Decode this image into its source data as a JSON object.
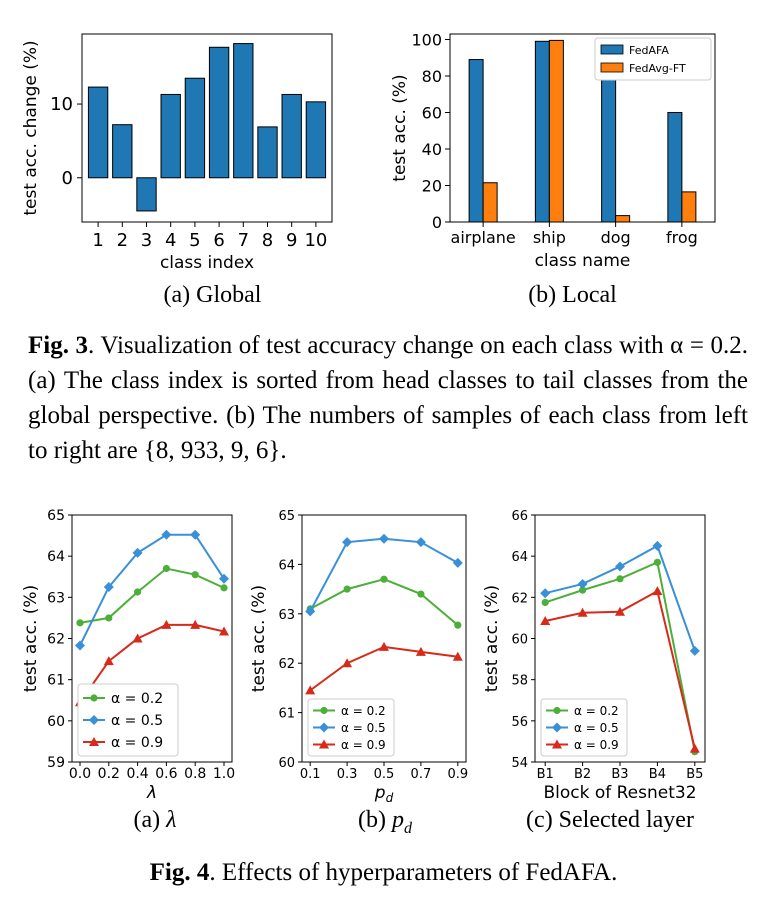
{
  "fig3": {
    "caption_label": "Fig. 3",
    "caption_text": ". Visualization of test accuracy change on each class with α = 0.2. (a) The class index is sorted from head classes to tail classes from the global perspective. (b) The numbers of samples of each class from left to right are {8, 933, 9, 6}.",
    "sub_a": "(a) Global",
    "sub_b": "(b) Local"
  },
  "fig4": {
    "caption_label": "Fig. 4",
    "caption_text": ". Effects of hyperparameters of FedAFA.",
    "sub_a_prefix": "(a) ",
    "sub_a_sym": "λ",
    "sub_b_prefix": "(b) ",
    "sub_b_sym": "p",
    "sub_b_sub": "d",
    "sub_c": "(c) Selected layer"
  },
  "colors": {
    "bar_blue": "#1f77b4",
    "bar_orange": "#ff7f0e",
    "green": "#4caf3a",
    "blue": "#3a8fd9",
    "red": "#d62a1a"
  },
  "chart_data": [
    {
      "id": "global",
      "type": "bar",
      "categories": [
        "1",
        "2",
        "3",
        "4",
        "5",
        "6",
        "7",
        "8",
        "9",
        "10"
      ],
      "values": [
        12.3,
        7.2,
        -4.5,
        11.3,
        13.5,
        17.7,
        18.2,
        6.9,
        11.3,
        10.3
      ],
      "xlabel": "class index",
      "ylabel": "test acc. change (%)",
      "ylim": [
        -6,
        19.5
      ],
      "yticks": [
        "0",
        "10"
      ]
    },
    {
      "id": "local",
      "type": "bar",
      "categories": [
        "airplane",
        "ship",
        "dog",
        "frog"
      ],
      "series": [
        {
          "name": "FedAFA",
          "values": [
            89,
            99,
            81,
            60
          ]
        },
        {
          "name": "FedAvg-FT",
          "values": [
            21.5,
            99.5,
            3.5,
            16.5
          ]
        }
      ],
      "xlabel": "class name",
      "ylabel": "test acc. (%)",
      "ylim": [
        0,
        103
      ],
      "yticks": [
        "0",
        "20",
        "40",
        "60",
        "80",
        "100"
      ],
      "legend": "top-right"
    },
    {
      "id": "lambda",
      "type": "line",
      "x": [
        0.0,
        0.2,
        0.4,
        0.6,
        0.8,
        1.0
      ],
      "xticks": [
        "0.0",
        "0.2",
        "0.4",
        "0.6",
        "0.8",
        "1.0"
      ],
      "series": [
        {
          "name": "α = 0.2",
          "values": [
            62.38,
            62.5,
            63.13,
            63.7,
            63.55,
            63.23
          ]
        },
        {
          "name": "α = 0.5",
          "values": [
            61.83,
            63.25,
            64.08,
            64.52,
            64.52,
            63.45
          ]
        },
        {
          "name": "α = 0.9",
          "values": [
            60.45,
            61.45,
            62.0,
            62.33,
            62.33,
            62.17
          ]
        }
      ],
      "xlabel": "λ",
      "ylabel": "test acc. (%)",
      "ylim": [
        59,
        65
      ],
      "yticks": [
        "59",
        "60",
        "61",
        "62",
        "63",
        "64",
        "65"
      ],
      "legend": "lower-left"
    },
    {
      "id": "pd",
      "type": "line",
      "x": [
        0.1,
        0.3,
        0.5,
        0.7,
        0.9
      ],
      "xticks": [
        "0.1",
        "0.3",
        "0.5",
        "0.7",
        "0.9"
      ],
      "series": [
        {
          "name": "α = 0.2",
          "values": [
            63.1,
            63.5,
            63.7,
            63.4,
            62.77
          ]
        },
        {
          "name": "α = 0.5",
          "values": [
            63.05,
            64.45,
            64.52,
            64.45,
            64.03
          ]
        },
        {
          "name": "α = 0.9",
          "values": [
            61.45,
            62.0,
            62.33,
            62.23,
            62.13
          ]
        }
      ],
      "xlabel": "p",
      "xlabel_sub": "d",
      "ylabel": "test acc. (%)",
      "ylim": [
        60,
        65
      ],
      "yticks": [
        "60",
        "61",
        "62",
        "63",
        "64",
        "65"
      ],
      "legend": "lower-left"
    },
    {
      "id": "layer",
      "type": "line",
      "categories": [
        "B1",
        "B2",
        "B3",
        "B4",
        "B5"
      ],
      "series": [
        {
          "name": "α = 0.2",
          "values": [
            61.75,
            62.35,
            62.9,
            63.7,
            54.5
          ]
        },
        {
          "name": "α = 0.5",
          "values": [
            62.2,
            62.65,
            63.5,
            64.5,
            59.4
          ]
        },
        {
          "name": "α = 0.9",
          "values": [
            60.85,
            61.25,
            61.3,
            62.3,
            54.65
          ]
        }
      ],
      "xlabel": "Block of Resnet32",
      "ylabel": "test acc. (%)",
      "ylim": [
        54,
        66
      ],
      "yticks": [
        "54",
        "56",
        "58",
        "60",
        "62",
        "64",
        "66"
      ],
      "legend": "lower-left"
    }
  ]
}
